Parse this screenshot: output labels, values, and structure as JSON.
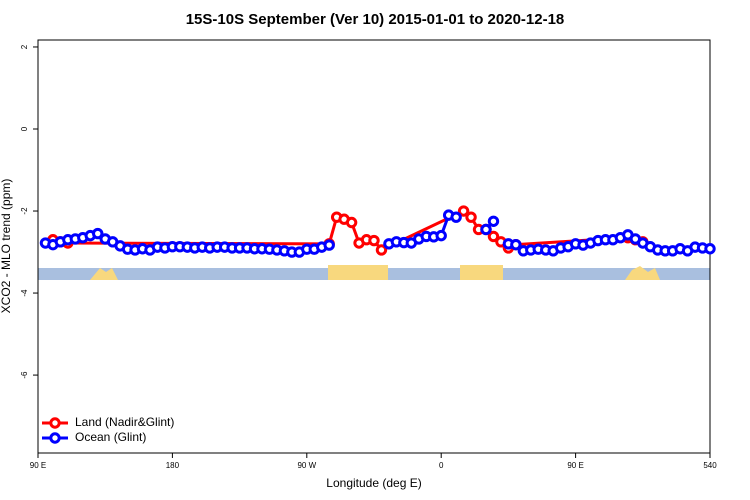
{
  "chart_data": {
    "type": "line",
    "title": "15S-10S September (Ver 10)   2015-01-01 to 2020-12-18",
    "x_label": "Longitude (deg E)",
    "y_label": "XCO2 - MLO trend (ppm)",
    "xlim": [
      90,
      540
    ],
    "ylim": [
      -7.9,
      2.17
    ],
    "xticks": [
      {
        "value": 90,
        "label": "90 E"
      },
      180,
      {
        "value": 270,
        "label": "90 W"
      },
      {
        "value": 360,
        "label": "0"
      },
      {
        "value": 450,
        "label": "90 E"
      },
      540
    ],
    "yticks": [
      -6,
      -4,
      -2,
      0,
      2
    ],
    "legend": "bottomleft",
    "series": [
      {
        "name": "Land (Nadir&Glint)",
        "color": "#ff0000",
        "x": [
          100,
          105,
          110,
          285,
          290,
          295,
          300,
          305,
          310,
          315,
          320,
          375,
          380,
          385,
          390,
          395,
          400,
          405,
          410,
          485,
          490,
          495
        ],
        "values": [
          -2.7,
          -2.75,
          -2.78,
          -2.8,
          -2.15,
          -2.2,
          -2.28,
          -2.78,
          -2.7,
          -2.72,
          -2.95,
          -2.0,
          -2.15,
          -2.45,
          -2.45,
          -2.62,
          -2.75,
          -2.9,
          -2.82,
          -2.65,
          -2.7,
          -2.75
        ]
      },
      {
        "name": "Ocean (Glint)",
        "color": "#0000ff",
        "x": [
          95,
          100,
          105,
          110,
          115,
          120,
          125,
          130,
          135,
          140,
          145,
          150,
          155,
          160,
          165,
          170,
          175,
          180,
          185,
          190,
          195,
          200,
          205,
          210,
          215,
          220,
          225,
          230,
          235,
          240,
          245,
          250,
          255,
          260,
          265,
          270,
          275,
          280,
          285,
          290,
          325,
          330,
          335,
          340,
          345,
          350,
          355,
          360,
          365,
          370,
          375,
          390,
          395,
          400,
          405,
          410,
          415,
          420,
          425,
          430,
          435,
          440,
          445,
          450,
          455,
          460,
          465,
          470,
          475,
          480,
          485,
          490,
          495,
          500,
          505,
          510,
          515,
          520,
          525,
          530,
          535,
          540
        ],
        "values": [
          -2.78,
          -2.82,
          -2.75,
          -2.7,
          -2.68,
          -2.65,
          -2.6,
          -2.55,
          -2.68,
          -2.75,
          -2.85,
          -2.93,
          -2.95,
          -2.92,
          -2.95,
          -2.88,
          -2.9,
          -2.87,
          -2.87,
          -2.88,
          -2.9,
          -2.88,
          -2.9,
          -2.88,
          -2.88,
          -2.9,
          -2.9,
          -2.9,
          -2.92,
          -2.92,
          -2.93,
          -2.95,
          -2.97,
          -3.0,
          -3.0,
          -2.93,
          -2.93,
          -2.88,
          -2.83,
          null,
          -2.8,
          -2.75,
          -2.77,
          -2.78,
          -2.68,
          -2.62,
          -2.63,
          -2.6,
          -2.1,
          -2.15,
          null,
          -2.45,
          -2.25,
          null,
          -2.8,
          -2.82,
          -2.97,
          -2.95,
          -2.93,
          -2.95,
          -2.97,
          -2.9,
          -2.87,
          -2.8,
          -2.83,
          -2.78,
          -2.72,
          -2.7,
          -2.7,
          -2.65,
          -2.58,
          -2.68,
          -2.78,
          -2.87,
          -2.95,
          -2.97,
          -2.97,
          -2.92,
          -2.97,
          -2.88,
          -2.9,
          -2.92
        ]
      }
    ]
  }
}
